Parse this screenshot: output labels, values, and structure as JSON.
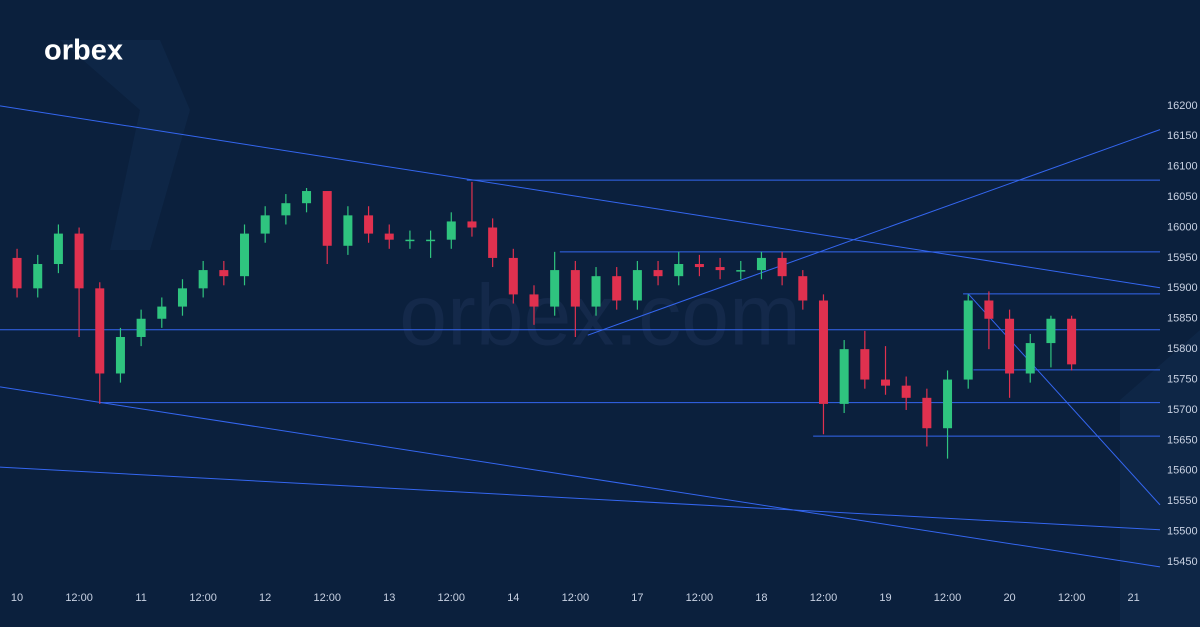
{
  "logo": "orbex",
  "watermark": "orbex.com",
  "chart_data": {
    "type": "candlestick",
    "up_color": "#2fc47f",
    "down_color": "#e0314f",
    "line_color": "#3466f0",
    "grid": false,
    "x": [
      0,
      4,
      8,
      12,
      16,
      20,
      24,
      28,
      32,
      36,
      40,
      44,
      48,
      52,
      56,
      60,
      64,
      68,
      72,
      76,
      80,
      84,
      88,
      92,
      96,
      100,
      104,
      108,
      112,
      116,
      120,
      124,
      128,
      132,
      136,
      140,
      144,
      148,
      152,
      156,
      160,
      164,
      168,
      172,
      176,
      180,
      184,
      188,
      192,
      196,
      200,
      204
    ],
    "open": [
      15950,
      15900,
      15940,
      15990,
      15900,
      15760,
      15820,
      15850,
      15870,
      15900,
      15930,
      15920,
      15990,
      16020,
      16040,
      16060,
      15970,
      16020,
      15990,
      15980,
      15980,
      15980,
      16010,
      16000,
      15950,
      15890,
      15870,
      15930,
      15870,
      15920,
      15880,
      15930,
      15920,
      15940,
      15935,
      15930,
      15930,
      15950,
      15920,
      15880,
      15710,
      15800,
      15750,
      15740,
      15720,
      15670,
      15750,
      15880,
      15850,
      15760,
      15810,
      15850
    ],
    "high": [
      15965,
      15955,
      16005,
      16000,
      15910,
      15835,
      15865,
      15885,
      15915,
      15945,
      15945,
      16005,
      16035,
      16055,
      16065,
      16060,
      16035,
      16035,
      16005,
      15995,
      15995,
      16025,
      16075,
      16015,
      15965,
      15905,
      15960,
      15945,
      15935,
      15935,
      15945,
      15945,
      15960,
      15955,
      15950,
      15945,
      15960,
      15960,
      15930,
      15890,
      15815,
      15830,
      15805,
      15755,
      15735,
      15765,
      15890,
      15895,
      15865,
      15825,
      15855,
      15855
    ],
    "low": [
      15885,
      15885,
      15925,
      15820,
      15710,
      15745,
      15805,
      15835,
      15855,
      15885,
      15905,
      15905,
      15975,
      16005,
      16025,
      15940,
      15955,
      15975,
      15965,
      15965,
      15950,
      15965,
      15985,
      15935,
      15875,
      15840,
      15855,
      15820,
      15855,
      15865,
      15865,
      15905,
      15905,
      15920,
      15915,
      15915,
      15915,
      15905,
      15865,
      15660,
      15695,
      15735,
      15725,
      15700,
      15640,
      15620,
      15735,
      15800,
      15720,
      15745,
      15770,
      15765
    ],
    "close": [
      15900,
      15940,
      15990,
      15900,
      15760,
      15820,
      15850,
      15870,
      15900,
      15930,
      15920,
      15990,
      16020,
      16040,
      16060,
      15970,
      16020,
      15990,
      15980,
      15980,
      15980,
      16010,
      16000,
      15950,
      15890,
      15870,
      15930,
      15870,
      15920,
      15880,
      15930,
      15920,
      15940,
      15935,
      15930,
      15930,
      15950,
      15920,
      15880,
      15710,
      15800,
      15750,
      15740,
      15720,
      15670,
      15750,
      15880,
      15850,
      15760,
      15810,
      15850,
      15775
    ],
    "xlim": [
      -3.3,
      221.1
    ],
    "ylim": [
      15404,
      16259
    ],
    "xticks": [
      {
        "value": 0,
        "label": "10"
      },
      {
        "value": 12,
        "label": "12:00"
      },
      {
        "value": 24,
        "label": "11"
      },
      {
        "value": 36,
        "label": "12:00"
      },
      {
        "value": 48,
        "label": "12"
      },
      {
        "value": 60,
        "label": "12:00"
      },
      {
        "value": 72,
        "label": "13"
      },
      {
        "value": 84,
        "label": "12:00"
      },
      {
        "value": 96,
        "label": "14"
      },
      {
        "value": 108,
        "label": "12:00"
      },
      {
        "value": 120,
        "label": "17"
      },
      {
        "value": 132,
        "label": "12:00"
      },
      {
        "value": 144,
        "label": "18"
      },
      {
        "value": 156,
        "label": "12:00"
      },
      {
        "value": 168,
        "label": "19"
      },
      {
        "value": 180,
        "label": "12:00"
      },
      {
        "value": 192,
        "label": "20"
      },
      {
        "value": 204,
        "label": "12:00"
      },
      {
        "value": 216,
        "label": "21"
      }
    ],
    "yticks": [
      15450,
      15500,
      15550,
      15600,
      15650,
      15700,
      15750,
      15800,
      15850,
      15900,
      15950,
      16000,
      16050,
      16100,
      16150,
      16200
    ],
    "levels": [
      {
        "value": 16078,
        "from": 87
      },
      {
        "value": 15960,
        "from": 105
      },
      {
        "value": 15891,
        "from": 183
      },
      {
        "value": 15832,
        "from": -3.3
      },
      {
        "value": 15766,
        "from": 185
      },
      {
        "value": 15712,
        "from": 16
      },
      {
        "value": 15657,
        "from": 154
      }
    ],
    "trendlines": [
      {
        "x": [
          -3.3,
          221.1
        ],
        "y": [
          16200,
          15901
        ]
      },
      {
        "x": [
          110.4,
          221.1
        ],
        "y": [
          15823,
          16161
        ]
      },
      {
        "x": [
          -3.3,
          221.1
        ],
        "y": [
          15738,
          15442
        ]
      },
      {
        "x": [
          -3.3,
          221.1
        ],
        "y": [
          15606,
          15503
        ]
      },
      {
        "x": [
          184,
          221.1
        ],
        "y": [
          15891,
          15544
        ]
      }
    ]
  }
}
